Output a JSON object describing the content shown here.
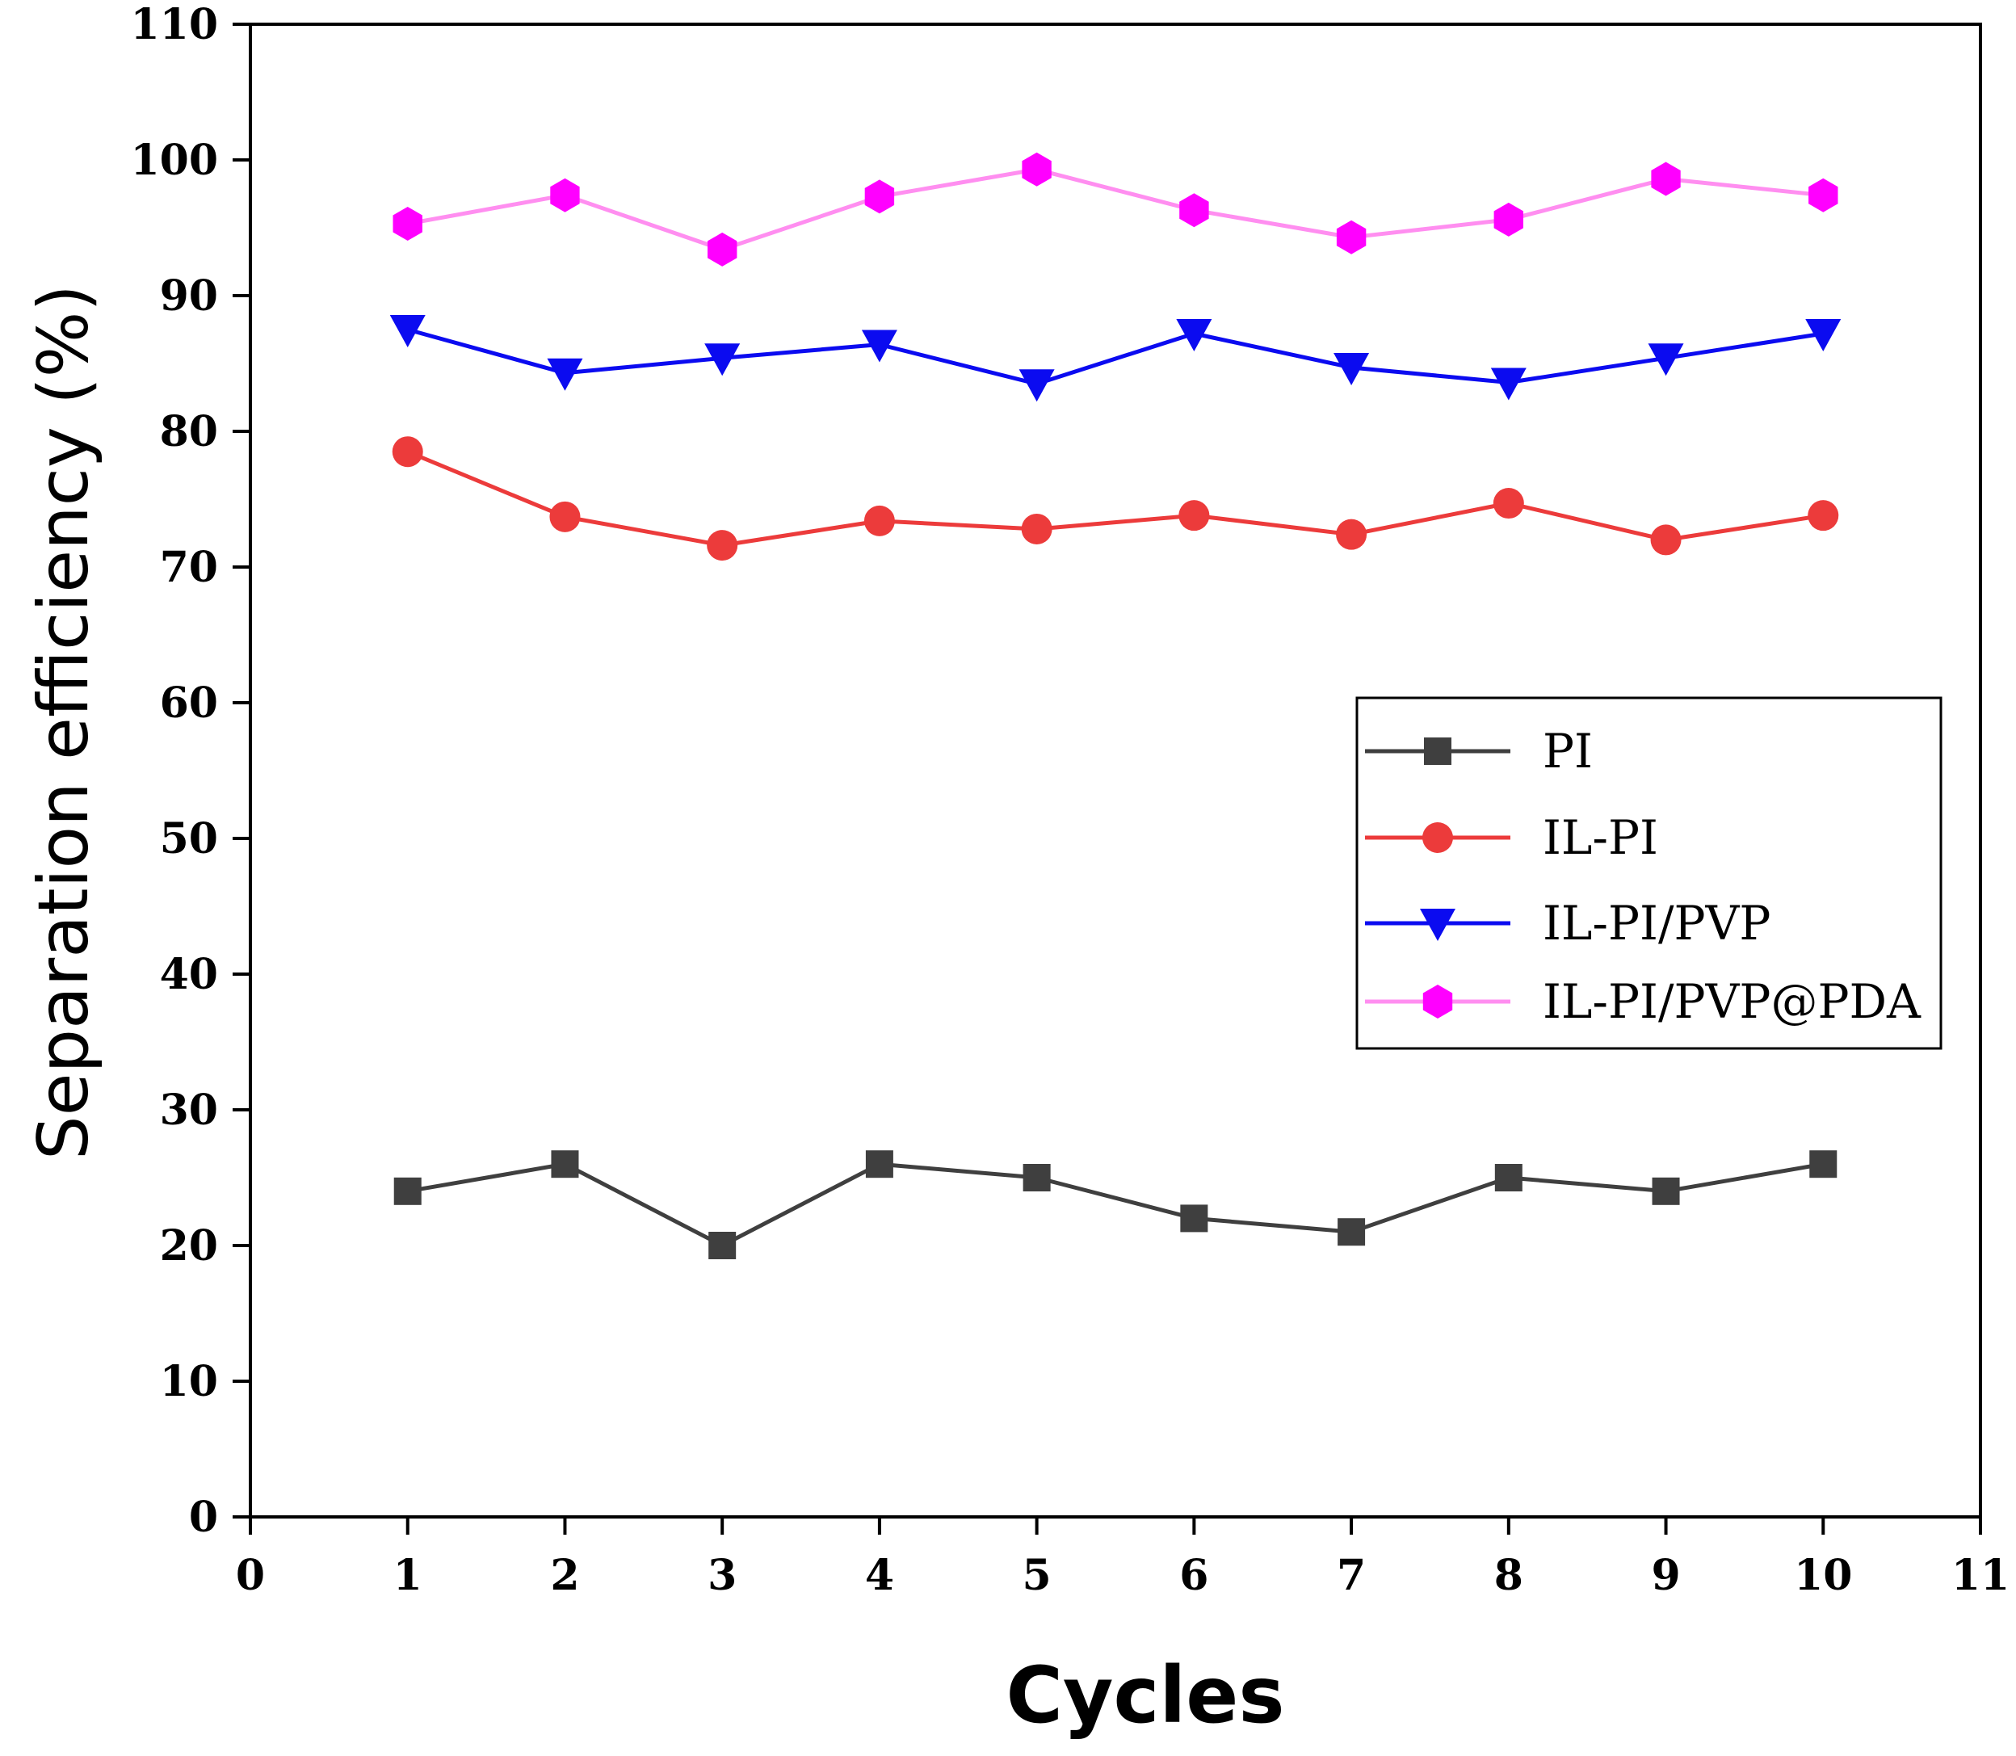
{
  "chart_data": {
    "type": "line",
    "title": "",
    "xlabel": "Cycles",
    "ylabel": "Separation efficiency (%)",
    "xlim": [
      0,
      11
    ],
    "ylim": [
      0,
      110
    ],
    "xticks": [
      "0",
      "1",
      "2",
      "3",
      "4",
      "5",
      "6",
      "7",
      "8",
      "9",
      "10",
      "11"
    ],
    "yticks": [
      "0",
      "10",
      "20",
      "30",
      "40",
      "50",
      "60",
      "70",
      "80",
      "90",
      "100",
      "110"
    ],
    "x": [
      1,
      2,
      3,
      4,
      5,
      6,
      7,
      8,
      9,
      10
    ],
    "legend_position": "center-right",
    "series": [
      {
        "name": "PI",
        "color": "#3f3f3f",
        "marker": "square",
        "values": [
          24,
          26,
          20,
          26,
          25,
          22,
          21,
          25,
          24,
          26
        ]
      },
      {
        "name": "IL-PI",
        "color": "#ec3b3b",
        "marker": "circle",
        "values": [
          78.5,
          73.7,
          71.6,
          73.4,
          72.8,
          73.8,
          72.4,
          74.7,
          72.0,
          73.8
        ]
      },
      {
        "name": "IL-PI/PVP",
        "color": "#0b0bf0",
        "marker": "triangle-down",
        "values": [
          87.5,
          84.3,
          85.4,
          86.4,
          83.5,
          87.2,
          84.7,
          83.6,
          85.4,
          87.2
        ]
      },
      {
        "name": "IL-PI/PVP@PDA",
        "color": "#ff00ff",
        "line_color": "#ff8ef0",
        "marker": "hexagon",
        "values": [
          95.3,
          97.4,
          93.4,
          97.3,
          99.3,
          96.3,
          94.3,
          95.6,
          98.6,
          97.4
        ]
      }
    ]
  }
}
